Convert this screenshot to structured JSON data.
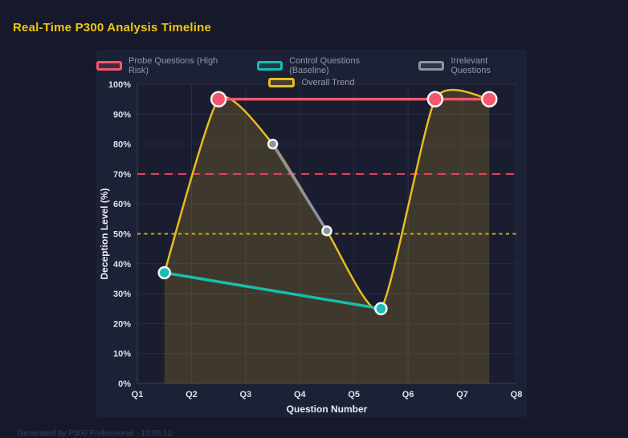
{
  "page": {
    "title": "Real-Time P300 Analysis Timeline",
    "footer": "Generated by P300 Professional · 10:05:12"
  },
  "chart_data": {
    "type": "line",
    "title": "Real-Time P300 Analysis Timeline",
    "xlabel": "Question Number",
    "ylabel": "Deception Level (%)",
    "x_ticks": [
      "Q1",
      "Q2",
      "Q3",
      "Q4",
      "Q5",
      "Q6",
      "Q7",
      "Q8"
    ],
    "x_tick_values": [
      1,
      2,
      3,
      4,
      5,
      6,
      7,
      8
    ],
    "xlim": [
      1,
      8
    ],
    "ylim": [
      0,
      100
    ],
    "y_tick_step": 10,
    "y_tick_suffix": "%",
    "grid": true,
    "legend_position": "top",
    "series": [
      {
        "name": "Probe Questions (High Risk)",
        "color": "#f4566b",
        "x": [
          2.5,
          6.5,
          7.5
        ],
        "values": [
          95,
          95,
          95
        ],
        "marker_radius": 9,
        "line_width": 3.5
      },
      {
        "name": "Control Questions (Baseline)",
        "color": "#17beb1",
        "x": [
          1.5,
          5.5
        ],
        "values": [
          37,
          25
        ],
        "marker_radius": 7,
        "line_width": 3.5
      },
      {
        "name": "Irrelevant Questions",
        "color": "#8e939e",
        "x": [
          3.5,
          4.5
        ],
        "values": [
          80,
          51
        ],
        "marker_radius": 5.5,
        "line_width": 3.5
      },
      {
        "name": "Overall Trend",
        "color": "#e8bc20",
        "x": [
          1.5,
          2.5,
          3.5,
          4.5,
          5.5,
          6.5,
          7.5
        ],
        "values": [
          37,
          95,
          80,
          51,
          25,
          95,
          95
        ],
        "smooth": true,
        "fill": true,
        "fill_opacity": 0.18,
        "marker_radius": 0,
        "line_width": 2.5
      }
    ],
    "reference_lines": [
      {
        "value": 70,
        "color": "#f43f5e",
        "dash": "10 7",
        "width": 2
      },
      {
        "value": 50,
        "color": "#dda60c",
        "dash": "4 4.5",
        "width": 2
      }
    ],
    "colors": {
      "page_bg": "#151929",
      "panel_bg": "#1d2135",
      "plot_bg": "#191d2f",
      "grid": "#282d44",
      "axis_line": "#3c4258",
      "tick_label": "#dde1ec",
      "axis_title": "#e9edf6",
      "marker_ring": "#f3f5f9",
      "title": "#f2c513",
      "legend_text": "#9098ab",
      "footer_text": "#39405c"
    }
  }
}
